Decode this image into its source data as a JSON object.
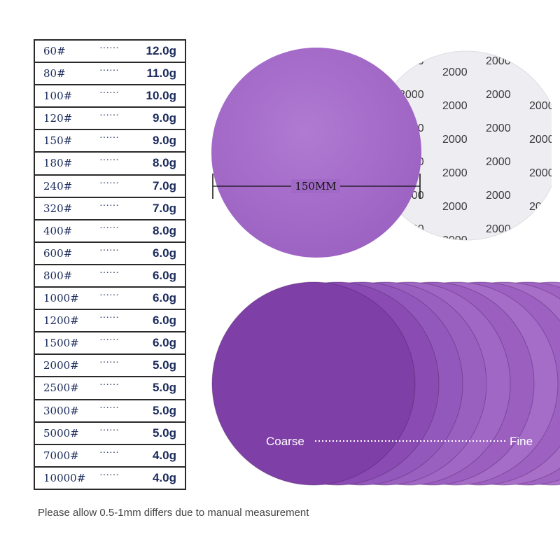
{
  "grit_table": [
    {
      "grit": "60#",
      "dots": "······",
      "weight": "12.0g"
    },
    {
      "grit": "80#",
      "dots": "······",
      "weight": "11.0g"
    },
    {
      "grit": "100#",
      "dots": "······",
      "weight": "10.0g"
    },
    {
      "grit": "120#",
      "dots": "······",
      "weight": "9.0g"
    },
    {
      "grit": "150#",
      "dots": "······",
      "weight": "9.0g"
    },
    {
      "grit": "180#",
      "dots": "······",
      "weight": "8.0g"
    },
    {
      "grit": "240#",
      "dots": "······",
      "weight": "7.0g"
    },
    {
      "grit": "320#",
      "dots": "······",
      "weight": "7.0g"
    },
    {
      "grit": "400#",
      "dots": "······",
      "weight": "8.0g"
    },
    {
      "grit": "600#",
      "dots": "······",
      "weight": "6.0g"
    },
    {
      "grit": "800#",
      "dots": "······",
      "weight": "6.0g"
    },
    {
      "grit": "1000#",
      "dots": "······",
      "weight": "6.0g"
    },
    {
      "grit": "1200#",
      "dots": "······",
      "weight": "6.0g"
    },
    {
      "grit": "1500#",
      "dots": "······",
      "weight": "6.0g"
    },
    {
      "grit": "2000#",
      "dots": "······",
      "weight": "5.0g"
    },
    {
      "grit": "2500#",
      "dots": "······",
      "weight": "5.0g"
    },
    {
      "grit": "3000#",
      "dots": "······",
      "weight": "5.0g"
    },
    {
      "grit": "5000#",
      "dots": "······",
      "weight": "5.0g"
    },
    {
      "grit": "7000#",
      "dots": "······",
      "weight": "4.0g"
    },
    {
      "grit": "10000#",
      "dots": "······",
      "weight": "4.0g"
    }
  ],
  "dimension_label": "150MM",
  "backing_code": "2000",
  "fan": {
    "coarse_label": "Coarse",
    "fine_label": "Fine"
  },
  "footer_note": "Please allow 0.5-1mm differs due to manual measurement",
  "colors": {
    "disc_purple": "#a169c6",
    "backing_gray": "#eeeef2",
    "table_text": "#1a2a5a"
  }
}
